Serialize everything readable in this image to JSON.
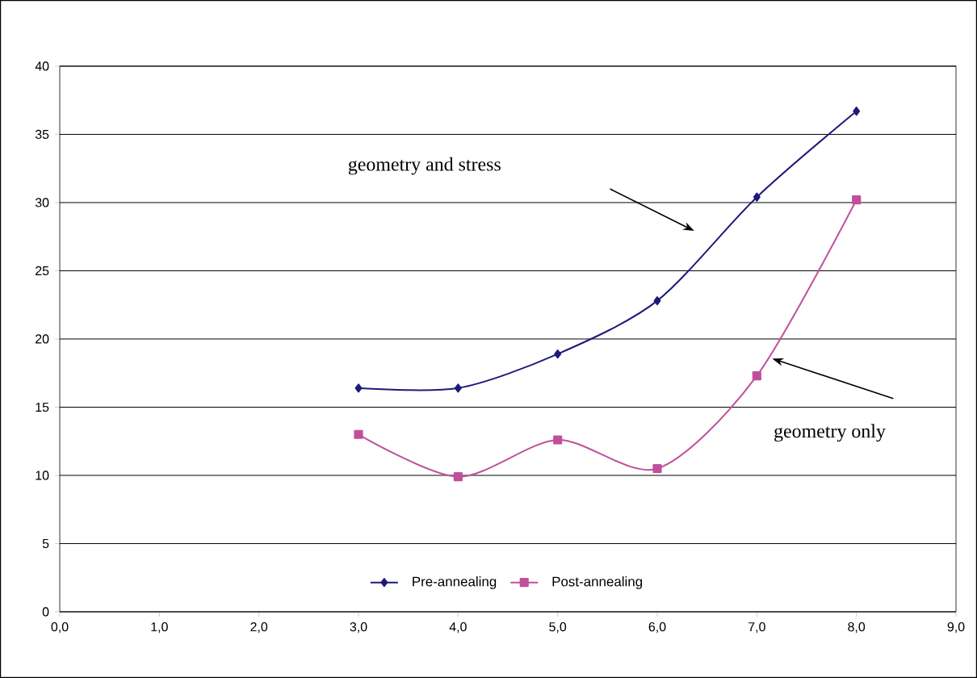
{
  "chart_data": {
    "type": "line",
    "xlim": [
      0,
      9
    ],
    "ylim": [
      0,
      40
    ],
    "xticks": [
      {
        "value": 0,
        "label": "0,0"
      },
      {
        "value": 1,
        "label": "1,0"
      },
      {
        "value": 2,
        "label": "2,0"
      },
      {
        "value": 3,
        "label": "3,0"
      },
      {
        "value": 4,
        "label": "4,0"
      },
      {
        "value": 5,
        "label": "5,0"
      },
      {
        "value": 6,
        "label": "6,0"
      },
      {
        "value": 7,
        "label": "7,0"
      },
      {
        "value": 8,
        "label": "8,0"
      },
      {
        "value": 9,
        "label": "9,0"
      }
    ],
    "yticks": [
      0,
      5,
      10,
      15,
      20,
      25,
      30,
      35,
      40
    ],
    "grid": "y",
    "legend": "bottom",
    "series": [
      {
        "name": "Pre-annealing",
        "color": "#1f1a7a",
        "marker": "diamond",
        "x": [
          3,
          4,
          5,
          6,
          7,
          8
        ],
        "values": [
          16.4,
          16.4,
          18.9,
          22.8,
          30.4,
          36.7
        ]
      },
      {
        "name": "Post-annealing",
        "color": "#c0509c",
        "marker": "square",
        "x": [
          3,
          4,
          5,
          6,
          7,
          8
        ],
        "values": [
          13.0,
          9.9,
          12.6,
          10.5,
          17.3,
          30.2
        ]
      }
    ],
    "annotations": [
      "geometry and stress",
      "geometry only"
    ]
  }
}
